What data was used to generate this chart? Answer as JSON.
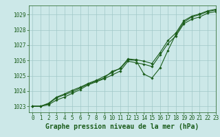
{
  "title": "Graphe pression niveau de la mer (hPa)",
  "bg_color": "#cce8e8",
  "grid_color": "#a0c8c8",
  "line_color": "#1a5c1a",
  "marker_color": "#1a5c1a",
  "xlim": [
    -0.5,
    23
  ],
  "ylim": [
    1022.6,
    1029.6
  ],
  "yticks": [
    1023,
    1024,
    1025,
    1026,
    1027,
    1028,
    1029
  ],
  "xticks": [
    0,
    1,
    2,
    3,
    4,
    5,
    6,
    7,
    8,
    9,
    10,
    11,
    12,
    13,
    14,
    15,
    16,
    17,
    18,
    19,
    20,
    21,
    22,
    23
  ],
  "series1": [
    1023.0,
    1023.0,
    1023.15,
    1023.55,
    1023.75,
    1023.95,
    1024.2,
    1024.45,
    1024.65,
    1024.85,
    1025.3,
    1025.45,
    1026.05,
    1026.0,
    1025.1,
    1024.85,
    1025.5,
    1026.65,
    1027.7,
    1028.5,
    1028.85,
    1029.0,
    1029.2,
    1029.3
  ],
  "series2": [
    1023.0,
    1023.0,
    1023.2,
    1023.6,
    1023.8,
    1024.05,
    1024.25,
    1024.5,
    1024.7,
    1024.95,
    1025.2,
    1025.5,
    1026.1,
    1026.05,
    1025.95,
    1025.8,
    1026.5,
    1027.3,
    1027.8,
    1028.6,
    1028.9,
    1029.05,
    1029.25,
    1029.35
  ],
  "series3": [
    1023.0,
    1023.0,
    1023.1,
    1023.4,
    1023.6,
    1023.85,
    1024.1,
    1024.4,
    1024.6,
    1024.8,
    1025.05,
    1025.3,
    1025.95,
    1025.85,
    1025.75,
    1025.6,
    1026.35,
    1027.1,
    1027.6,
    1028.4,
    1028.7,
    1028.85,
    1029.1,
    1029.2
  ],
  "title_fontsize": 7,
  "tick_fontsize": 5.5
}
